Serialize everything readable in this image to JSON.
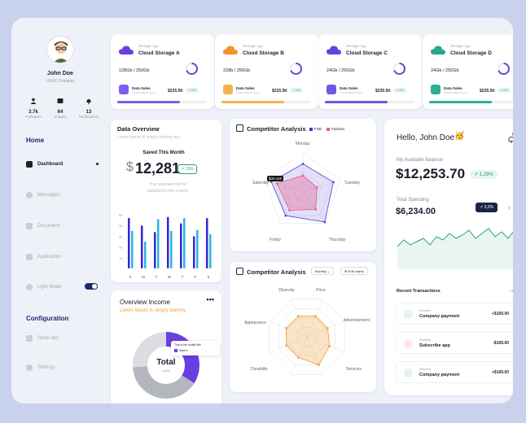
{
  "profile": {
    "name": "John Doe",
    "role": "UI/UX Designer",
    "stats": [
      {
        "value": "3.7k",
        "label": "Followers"
      },
      {
        "value": "64",
        "label": "Images"
      },
      {
        "value": "13",
        "label": "Notifications"
      }
    ]
  },
  "nav": {
    "home_heading": "Home",
    "items": [
      {
        "label": "Dashboard"
      },
      {
        "label": "Messages"
      },
      {
        "label": "Document"
      },
      {
        "label": "Application"
      },
      {
        "label": "Light Mode"
      }
    ],
    "config_heading": "Configuration",
    "config_items": [
      {
        "label": "Stock dev"
      },
      {
        "label": "Settings"
      }
    ]
  },
  "storage_cards": [
    {
      "label": "Storage App",
      "name": "Cloud Storage A",
      "capacity": "128Gb / 250Gb",
      "sales_label": "Data Sales",
      "lorem": "Lorem ipsum dolor",
      "amount": "$235.5K",
      "badge": "+ 14%",
      "color": "#6a3fe0",
      "progress": 0.7
    },
    {
      "label": "Storage App",
      "name": "Cloud Storage B",
      "capacity": "228b / 250Gb",
      "sales_label": "Data Sales",
      "lorem": "Lorem ipsum dolor",
      "amount": "$235.5K",
      "badge": "+ 14%",
      "color": "#f2922c",
      "progress": 0.7
    },
    {
      "label": "Storage App",
      "name": "Cloud Storage C",
      "capacity": "24Gb / 250Gb",
      "sales_label": "Data Sales",
      "lorem": "Lorem ipsum dolor",
      "amount": "$235.5K",
      "badge": "+ 14%",
      "color": "#5a47e0",
      "progress": 0.7
    },
    {
      "label": "Storage App",
      "name": "Cloud Storage D",
      "capacity": "24Gb / 250Gb",
      "sales_label": "Data Sales",
      "lorem": "Lorem ipsum dolor",
      "amount": "$235.5K",
      "badge": "+ 14%",
      "color": "#26a68a",
      "progress": 0.7
    }
  ],
  "data_overview": {
    "title": "Data Overview",
    "subtitle": "Lorem Ipsum is simply dummy text",
    "saved_label": "Saved This Month",
    "currency": "$",
    "amount": "12,281",
    "change": "↗ 13%",
    "desc": "Your payment will be updated by the system"
  },
  "chart_data": [
    {
      "type": "bar",
      "title": "Data Overview",
      "categories": [
        "S",
        "M",
        "T",
        "W",
        "T",
        "F",
        "S"
      ],
      "ylim": [
        0,
        50
      ],
      "yticks": [
        "50",
        "40",
        "30",
        "20",
        "10"
      ],
      "series": [
        {
          "values": [
            47,
            40,
            34,
            48,
            42,
            30,
            47
          ]
        },
        {
          "values": [
            35,
            25,
            46,
            35,
            47,
            36,
            32
          ]
        }
      ]
    },
    {
      "type": "radar",
      "title": "Competitor Analysis",
      "series": [
        {
          "name": "FSB"
        },
        {
          "name": "Fashion"
        }
      ],
      "axes": [
        "Monday",
        "Tuesday",
        "Thursday",
        "Friday",
        "Saturday"
      ],
      "annotation": "$30,150"
    },
    {
      "type": "radar",
      "title": "Competitor Analysis",
      "axes": [
        "Price",
        "Advertisement",
        "Services",
        "Channel",
        "Quality",
        "Durability",
        "Appearance",
        "Diversity"
      ]
    },
    {
      "type": "pie",
      "title": "Overview Income",
      "subtitle": "Lorem Ipsum is simply dummy",
      "center_title": "Total",
      "center_label": "Label",
      "tooltip_title": "This is the tooltip title",
      "tooltip_item": "Data A"
    }
  ],
  "competitor": {
    "dropdown": "Monthly",
    "edit_label": "Edit charts"
  },
  "wallet": {
    "greeting": "Hello, John Doe",
    "balance_label": "My Available Balance",
    "balance": "$12,253.70",
    "balance_change": "↗ 1,29%",
    "spending_label": "Total Spending",
    "spending": "$6,234.00",
    "spending_badge": "↗ 3,2%",
    "notif_count": "9+",
    "transactions_title": "Recent Transactions",
    "transactions": [
      {
        "type": "Receive",
        "name": "Company payment",
        "amount": "+$100.00"
      },
      {
        "type": "Transfer",
        "name": "Subscribe app",
        "amount": "-$100.00"
      },
      {
        "type": "Receive",
        "name": "Company payment",
        "amount": "+$100.00"
      }
    ]
  },
  "colors": {
    "navy": "#1e2a6d",
    "blue": "#3326d9",
    "cyan": "#29b6e0",
    "green": "#27a36b",
    "orange": "#f29b3a"
  }
}
